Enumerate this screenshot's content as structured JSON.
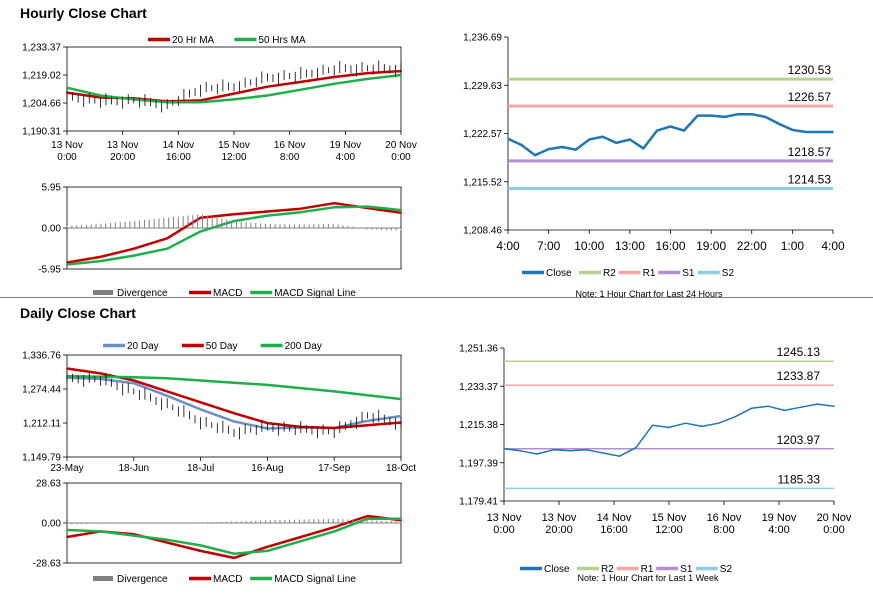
{
  "sections": {
    "hourly_title": "Hourly Close Chart",
    "daily_title": "Daily Close Chart"
  },
  "colors": {
    "red": "#c00000",
    "green": "#1fae4b",
    "blue_ma": "#6d8fc4",
    "close": "#2075b3",
    "r2": "#b3d28f",
    "r1": "#f1a6a6",
    "s1": "#b38fd0",
    "s2": "#8ccfe0",
    "divergence": "#808080"
  },
  "chart_data": [
    {
      "id": "hourly_price",
      "type": "line",
      "legend": [
        "20 Hr MA",
        "50 Hrs MA"
      ],
      "legend_position": "top",
      "ylim": [
        1190.31,
        1233.37
      ],
      "yticks": [
        "1,233.37",
        "1,219.02",
        "1,204.66",
        "1,190.31"
      ],
      "xticks": [
        "13 Nov\n0:00",
        "13 Nov\n20:00",
        "14 Nov\n16:00",
        "15 Nov\n12:00",
        "16 Nov\n8:00",
        "19 Nov\n4:00",
        "20 Nov\n0:00"
      ],
      "x": [
        0,
        10,
        20,
        30,
        40,
        50,
        60,
        70,
        80,
        90,
        100
      ],
      "series": [
        {
          "name": "20 Hr MA",
          "values": [
            1210.0,
            1207.5,
            1207.0,
            1205.5,
            1206.0,
            1209.5,
            1213.0,
            1215.5,
            1218.0,
            1220.0,
            1221.0
          ]
        },
        {
          "name": "50 Hrs MA",
          "values": [
            1212.5,
            1208.5,
            1206.5,
            1205.0,
            1205.0,
            1206.5,
            1208.5,
            1211.5,
            1214.5,
            1217.0,
            1219.0
          ]
        },
        {
          "name": "Close",
          "values": [
            1208.0,
            1205.5,
            1206.0,
            1203.5,
            1212.0,
            1213.0,
            1217.5,
            1219.0,
            1222.0,
            1222.5,
            1222.0
          ]
        }
      ]
    },
    {
      "id": "hourly_macd",
      "type": "line",
      "legend": [
        "Divergence",
        "MACD",
        "MACD Signal Line"
      ],
      "legend_position": "bottom",
      "ylim": [
        -5.95,
        5.95
      ],
      "yticks": [
        "5.95",
        "0.00",
        "-5.95"
      ],
      "x": [
        0,
        10,
        20,
        30,
        40,
        50,
        60,
        70,
        80,
        90,
        100
      ],
      "series": [
        {
          "name": "MACD",
          "values": [
            -5.0,
            -4.2,
            -3.0,
            -1.5,
            1.5,
            2.0,
            2.4,
            2.8,
            3.6,
            2.9,
            2.2
          ]
        },
        {
          "name": "MACD Signal Line",
          "values": [
            -5.3,
            -4.8,
            -4.0,
            -3.0,
            -0.5,
            1.0,
            1.8,
            2.3,
            3.0,
            3.1,
            2.6
          ]
        },
        {
          "name": "Divergence",
          "values": [
            0.3,
            0.6,
            1.0,
            1.5,
            2.0,
            1.0,
            0.6,
            0.5,
            0.6,
            -0.2,
            -0.4
          ]
        }
      ]
    },
    {
      "id": "hourly_pivot",
      "type": "line",
      "legend": [
        "Close",
        "R2",
        "R1",
        "S1",
        "S2"
      ],
      "legend_position": "bottom",
      "ylim": [
        1208.46,
        1236.69
      ],
      "yticks": [
        "1,236.69",
        "1,229.63",
        "1,222.57",
        "1,215.52",
        "1,208.46"
      ],
      "xticks": [
        "4:00",
        "7:00",
        "10:00",
        "13:00",
        "16:00",
        "19:00",
        "22:00",
        "1:00",
        "4:00"
      ],
      "x": [
        0,
        1,
        2,
        3,
        4,
        5,
        6,
        7,
        8,
        9,
        10,
        11,
        12,
        13,
        14,
        15,
        16,
        17,
        18,
        19,
        20,
        21,
        22,
        23,
        24
      ],
      "series": [
        {
          "name": "Close",
          "values": [
            1221.8,
            1220.9,
            1219.4,
            1220.3,
            1220.6,
            1220.2,
            1221.7,
            1222.1,
            1221.2,
            1221.7,
            1220.4,
            1223.0,
            1223.6,
            1223.0,
            1225.2,
            1225.2,
            1225.0,
            1225.4,
            1225.4,
            1225.0,
            1224.0,
            1223.1,
            1222.8,
            1222.8,
            1222.8
          ]
        }
      ],
      "levels": [
        {
          "name": "R2",
          "value": 1230.53,
          "label": "1230.53"
        },
        {
          "name": "R1",
          "value": 1226.57,
          "label": "1226.57"
        },
        {
          "name": "S1",
          "value": 1218.57,
          "label": "1218.57"
        },
        {
          "name": "S2",
          "value": 1214.53,
          "label": "1214.53"
        }
      ],
      "note": "Note: 1 Hour Chart for Last 24 Hours"
    },
    {
      "id": "daily_price",
      "type": "line",
      "legend": [
        "20 Day",
        "50 Day",
        "200 Day"
      ],
      "legend_position": "top",
      "ylim": [
        1149.79,
        1336.76
      ],
      "yticks": [
        "1,336.76",
        "1,274.44",
        "1,212.11",
        "1,149.79"
      ],
      "xticks": [
        "23-May",
        "18-Jun",
        "18-Jul",
        "16-Aug",
        "17-Sep",
        "18-Oct"
      ],
      "x": [
        0,
        10,
        20,
        30,
        40,
        50,
        60,
        70,
        80,
        90,
        100
      ],
      "series": [
        {
          "name": "20 Day",
          "values": [
            1295.0,
            1293.0,
            1285.0,
            1262.0,
            1237.0,
            1215.0,
            1202.0,
            1204.0,
            1203.0,
            1216.0,
            1225.0
          ]
        },
        {
          "name": "50 Day",
          "values": [
            1312.0,
            1303.0,
            1290.0,
            1270.0,
            1250.0,
            1230.0,
            1212.0,
            1205.0,
            1203.0,
            1208.0,
            1213.0
          ]
        },
        {
          "name": "200 Day",
          "values": [
            1298.0,
            1297.0,
            1296.0,
            1294.0,
            1290.0,
            1286.0,
            1282.0,
            1276.0,
            1270.0,
            1263.0,
            1256.0
          ]
        },
        {
          "name": "Close",
          "values": [
            1294.0,
            1292.0,
            1270.0,
            1246.0,
            1215.0,
            1195.0,
            1205.0,
            1201.0,
            1196.0,
            1226.0,
            1212.0
          ]
        }
      ]
    },
    {
      "id": "daily_macd",
      "type": "line",
      "legend": [
        "Divergence",
        "MACD",
        "MACD Signal Line"
      ],
      "legend_position": "bottom",
      "ylim": [
        -28.63,
        28.63
      ],
      "yticks": [
        "28.63",
        "0.00",
        "-28.63"
      ],
      "x": [
        0,
        10,
        20,
        30,
        40,
        50,
        60,
        70,
        80,
        90,
        100
      ],
      "series": [
        {
          "name": "MACD",
          "values": [
            -10.0,
            -6.0,
            -8.0,
            -14.0,
            -20.0,
            -25.0,
            -17.0,
            -10.0,
            -3.0,
            5.0,
            2.0
          ]
        },
        {
          "name": "MACD Signal Line",
          "values": [
            -5.0,
            -6.0,
            -9.0,
            -12.0,
            -16.0,
            -22.0,
            -20.0,
            -13.0,
            -6.0,
            3.0,
            3.0
          ]
        },
        {
          "name": "Divergence",
          "values": [
            -1.0,
            -0.5,
            -0.2,
            0.2,
            0.5,
            1.0,
            2.0,
            2.5,
            3.0,
            2.0,
            1.0
          ]
        }
      ]
    },
    {
      "id": "daily_pivot",
      "type": "line",
      "legend": [
        "Close",
        "R2",
        "R1",
        "S1",
        "S2"
      ],
      "legend_position": "bottom",
      "ylim": [
        1179.41,
        1251.36
      ],
      "yticks": [
        "1,251.36",
        "1,233.37",
        "1,215.38",
        "1,197.39",
        "1,179.41"
      ],
      "xticks": [
        "13 Nov\n0:00",
        "13 Nov\n20:00",
        "14 Nov\n16:00",
        "15 Nov\n12:00",
        "16 Nov\n8:00",
        "19 Nov\n4:00",
        "20 Nov\n0:00"
      ],
      "x": [
        0,
        5,
        10,
        15,
        20,
        25,
        30,
        35,
        40,
        45,
        50,
        55,
        60,
        65,
        70,
        75,
        80,
        85,
        90,
        95,
        100
      ],
      "series": [
        {
          "name": "Close",
          "values": [
            1204.0,
            1203.0,
            1201.5,
            1203.5,
            1203.0,
            1203.5,
            1202.0,
            1200.5,
            1204.5,
            1215.0,
            1214.0,
            1216.0,
            1214.5,
            1216.0,
            1219.0,
            1223.0,
            1224.0,
            1222.0,
            1223.5,
            1225.0,
            1224.0
          ]
        }
      ],
      "levels": [
        {
          "name": "R2",
          "value": 1245.13,
          "label": "1245.13"
        },
        {
          "name": "R1",
          "value": 1233.87,
          "label": "1233.87"
        },
        {
          "name": "S1",
          "value": 1203.97,
          "label": "1203.97"
        },
        {
          "name": "S2",
          "value": 1185.33,
          "label": "1185.33"
        }
      ],
      "note": "Note: 1 Hour Chart for Last 1 Week"
    }
  ]
}
